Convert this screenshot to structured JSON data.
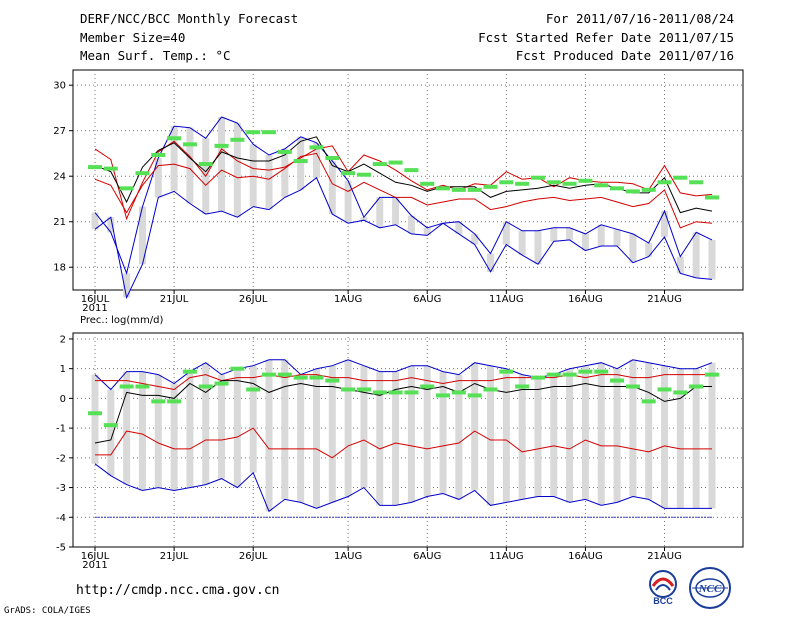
{
  "header": {
    "title": "DERF/NCC/BCC Monthly Forecast",
    "member_size": "Member Size=40",
    "variable": "Mean Surf. Temp.: °C",
    "period": "For 2011/07/16-2011/08/24",
    "started": "Fcst Started Refer Date 2011/07/15",
    "produced": "Fcst Produced Date 2011/07/16"
  },
  "footer": {
    "url": "http://cmdp.ncc.cma.gov.cn",
    "credit": "GrADS: COLA/IGES",
    "logo1_text": "BCC",
    "logo2_text": "NCC"
  },
  "colors": {
    "envelope": "#0000cc",
    "spread": "#d40000",
    "mean": "#000000",
    "box": "#d9d9d9",
    "climatology": "#55e055",
    "floor": "#3a3ab0"
  },
  "chart_data": [
    {
      "type": "line",
      "title": "Mean Surf. Temp.: °C",
      "x_tick_labels": [
        "16JUL",
        "21JUL",
        "26JUL",
        "1AUG",
        "6AUG",
        "11AUG",
        "16AUG",
        "21AUG"
      ],
      "year_label": "2011",
      "y_tick_labels": [
        "18",
        "21",
        "24",
        "27",
        "30"
      ],
      "ylim": [
        16.5,
        31
      ],
      "grid": true,
      "days": 40,
      "series": [
        {
          "name": "max",
          "values": [
            21.6,
            20.3,
            17.6,
            22.0,
            25.2,
            27.3,
            27.2,
            26.5,
            27.9,
            27.5,
            26.1,
            25.4,
            25.8,
            26.6,
            26.2,
            25.0,
            23.7,
            21.3,
            22.6,
            22.6,
            21.4,
            20.6,
            20.9,
            21.0,
            20.2,
            18.9,
            21.0,
            20.4,
            20.4,
            20.6,
            20.6,
            20.2,
            20.8,
            20.5,
            20.2,
            19.6,
            21.7,
            18.7,
            20.3,
            19.8
          ]
        },
        {
          "name": "upper",
          "values": [
            25.8,
            25.1,
            21.2,
            23.6,
            25.6,
            26.3,
            25.3,
            24.0,
            25.8,
            25.0,
            24.5,
            24.4,
            24.6,
            25.2,
            25.8,
            26.0,
            24.3,
            25.4,
            25.0,
            24.4,
            23.7,
            23.1,
            23.4,
            23.1,
            23.5,
            23.4,
            24.3,
            23.8,
            23.9,
            23.3,
            23.9,
            23.7,
            23.6,
            23.6,
            23.5,
            23.1,
            24.7,
            22.9,
            22.7,
            22.8
          ]
        },
        {
          "name": "mean",
          "values": [
            24.7,
            24.3,
            22.3,
            24.6,
            25.7,
            26.2,
            25.2,
            24.3,
            25.6,
            25.2,
            25.0,
            25.0,
            25.4,
            26.3,
            26.6,
            24.7,
            24.3,
            24.8,
            24.2,
            23.6,
            23.4,
            23.0,
            23.3,
            23.3,
            23.3,
            22.6,
            23.0,
            23.1,
            23.2,
            23.4,
            23.2,
            23.4,
            23.5,
            23.2,
            22.9,
            22.9,
            23.9,
            21.6,
            21.9,
            21.7
          ]
        },
        {
          "name": "lower",
          "values": [
            23.8,
            23.4,
            21.6,
            23.4,
            24.7,
            24.8,
            24.5,
            23.4,
            24.4,
            23.9,
            24.0,
            23.8,
            24.5,
            25.3,
            25.5,
            23.5,
            23.0,
            23.6,
            23.1,
            22.6,
            22.6,
            22.1,
            22.3,
            22.5,
            22.5,
            21.8,
            22.0,
            22.3,
            22.5,
            22.6,
            22.4,
            22.5,
            22.6,
            22.3,
            22.0,
            22.2,
            23.1,
            20.6,
            21.0,
            20.9
          ]
        },
        {
          "name": "min",
          "values": [
            20.5,
            21.3,
            16.0,
            18.2,
            22.6,
            23.0,
            22.2,
            21.5,
            21.7,
            21.3,
            22.0,
            21.8,
            22.6,
            23.1,
            23.9,
            21.5,
            20.9,
            21.1,
            20.6,
            20.8,
            20.2,
            20.1,
            20.9,
            20.2,
            19.5,
            17.7,
            19.5,
            18.8,
            18.2,
            19.7,
            19.8,
            19.1,
            19.4,
            19.4,
            18.3,
            18.7,
            20.0,
            17.6,
            17.3,
            17.2
          ]
        },
        {
          "name": "clim",
          "values": [
            24.6,
            24.5,
            23.2,
            24.2,
            25.4,
            26.5,
            26.1,
            24.8,
            26.0,
            26.4,
            26.9,
            26.9,
            25.6,
            25.0,
            25.9,
            25.2,
            24.2,
            24.1,
            24.8,
            24.9,
            24.4,
            23.5,
            23.2,
            23.1,
            23.1,
            23.3,
            23.6,
            23.5,
            23.9,
            23.6,
            23.5,
            23.7,
            23.4,
            23.2,
            23.0,
            23.1,
            23.6,
            23.9,
            23.6,
            22.6
          ]
        }
      ]
    },
    {
      "type": "line",
      "title": "Prec.: log(mm/d)",
      "x_tick_labels": [
        "16JUL",
        "21JUL",
        "26JUL",
        "1AUG",
        "6AUG",
        "11AUG",
        "16AUG",
        "21AUG"
      ],
      "year_label": "2011",
      "y_tick_labels": [
        "-5",
        "-4",
        "-3",
        "-2",
        "-1",
        "0",
        "1",
        "2"
      ],
      "ylim": [
        -5,
        2.2
      ],
      "grid": true,
      "days": 40,
      "series": [
        {
          "name": "max",
          "values": [
            0.8,
            0.3,
            0.9,
            0.9,
            0.8,
            0.5,
            0.9,
            1.2,
            0.8,
            1.0,
            1.1,
            1.3,
            1.3,
            0.8,
            1.0,
            1.1,
            1.3,
            1.1,
            0.9,
            0.9,
            1.1,
            1.1,
            0.9,
            0.8,
            1.2,
            1.1,
            1.0,
            0.8,
            0.7,
            0.8,
            1.0,
            1.1,
            1.2,
            1.0,
            1.3,
            1.2,
            1.1,
            1.0,
            1.0,
            1.2
          ]
        },
        {
          "name": "upper",
          "values": [
            0.6,
            0.6,
            0.6,
            0.5,
            0.4,
            0.3,
            0.7,
            0.8,
            0.6,
            0.7,
            0.7,
            0.8,
            0.7,
            0.8,
            0.8,
            0.7,
            0.7,
            0.6,
            0.6,
            0.6,
            0.7,
            0.6,
            0.5,
            0.6,
            0.6,
            0.6,
            0.7,
            0.7,
            0.7,
            0.7,
            0.8,
            0.7,
            0.8,
            0.8,
            0.7,
            0.7,
            0.8,
            0.8,
            0.8,
            0.8
          ]
        },
        {
          "name": "mean",
          "values": [
            -1.5,
            -1.4,
            0.2,
            0.1,
            0.1,
            0.0,
            0.5,
            0.2,
            0.6,
            0.6,
            0.5,
            0.2,
            0.4,
            0.5,
            0.4,
            0.4,
            0.3,
            0.2,
            0.1,
            0.3,
            0.4,
            0.3,
            0.4,
            0.2,
            0.5,
            0.3,
            0.2,
            0.3,
            0.3,
            0.4,
            0.4,
            0.5,
            0.4,
            0.4,
            0.4,
            0.2,
            -0.1,
            0.0,
            0.4,
            0.4
          ]
        },
        {
          "name": "lower",
          "values": [
            -1.9,
            -1.9,
            -1.1,
            -1.2,
            -1.5,
            -1.7,
            -1.7,
            -1.4,
            -1.4,
            -1.3,
            -1.0,
            -1.7,
            -1.7,
            -1.7,
            -1.7,
            -2.0,
            -1.6,
            -1.4,
            -1.7,
            -1.5,
            -1.6,
            -1.7,
            -1.6,
            -1.5,
            -1.1,
            -1.4,
            -1.4,
            -1.8,
            -1.7,
            -1.6,
            -1.7,
            -1.4,
            -1.6,
            -1.6,
            -1.7,
            -1.8,
            -1.6,
            -1.7,
            -1.7,
            -1.7
          ]
        },
        {
          "name": "min",
          "values": [
            -2.2,
            -2.6,
            -2.9,
            -3.1,
            -3.0,
            -3.1,
            -3.0,
            -2.9,
            -2.7,
            -3.0,
            -2.5,
            -3.8,
            -3.4,
            -3.5,
            -3.7,
            -3.5,
            -3.3,
            -3.0,
            -3.6,
            -3.6,
            -3.5,
            -3.3,
            -3.2,
            -3.4,
            -3.1,
            -3.6,
            -3.5,
            -3.4,
            -3.3,
            -3.3,
            -3.5,
            -3.4,
            -3.6,
            -3.5,
            -3.3,
            -3.4,
            -3.7,
            -3.7,
            -3.7,
            -3.7
          ]
        },
        {
          "name": "clim",
          "values": [
            -0.5,
            -0.9,
            0.4,
            0.4,
            -0.1,
            -0.1,
            0.9,
            0.4,
            0.5,
            1.0,
            0.3,
            0.8,
            0.8,
            0.7,
            0.7,
            0.6,
            0.3,
            0.3,
            0.2,
            0.2,
            0.2,
            0.4,
            0.1,
            0.2,
            0.1,
            0.3,
            0.9,
            0.4,
            0.7,
            0.8,
            0.8,
            0.9,
            0.9,
            0.6,
            0.4,
            -0.1,
            0.3,
            0.2,
            0.4,
            0.8
          ]
        },
        {
          "name": "floor",
          "values": [
            -4,
            -4,
            -4,
            -4,
            -4,
            -4,
            -4,
            -4,
            -4,
            -4,
            -4,
            -4,
            -4,
            -4,
            -4,
            -4,
            -4,
            -4,
            -4,
            -4,
            -4,
            -4,
            -4,
            -4,
            -4,
            -4,
            -4,
            -4,
            -4,
            -4,
            -4,
            -4,
            -4,
            -4,
            -4,
            -4,
            -4,
            -4,
            -4,
            -4
          ]
        }
      ]
    }
  ]
}
